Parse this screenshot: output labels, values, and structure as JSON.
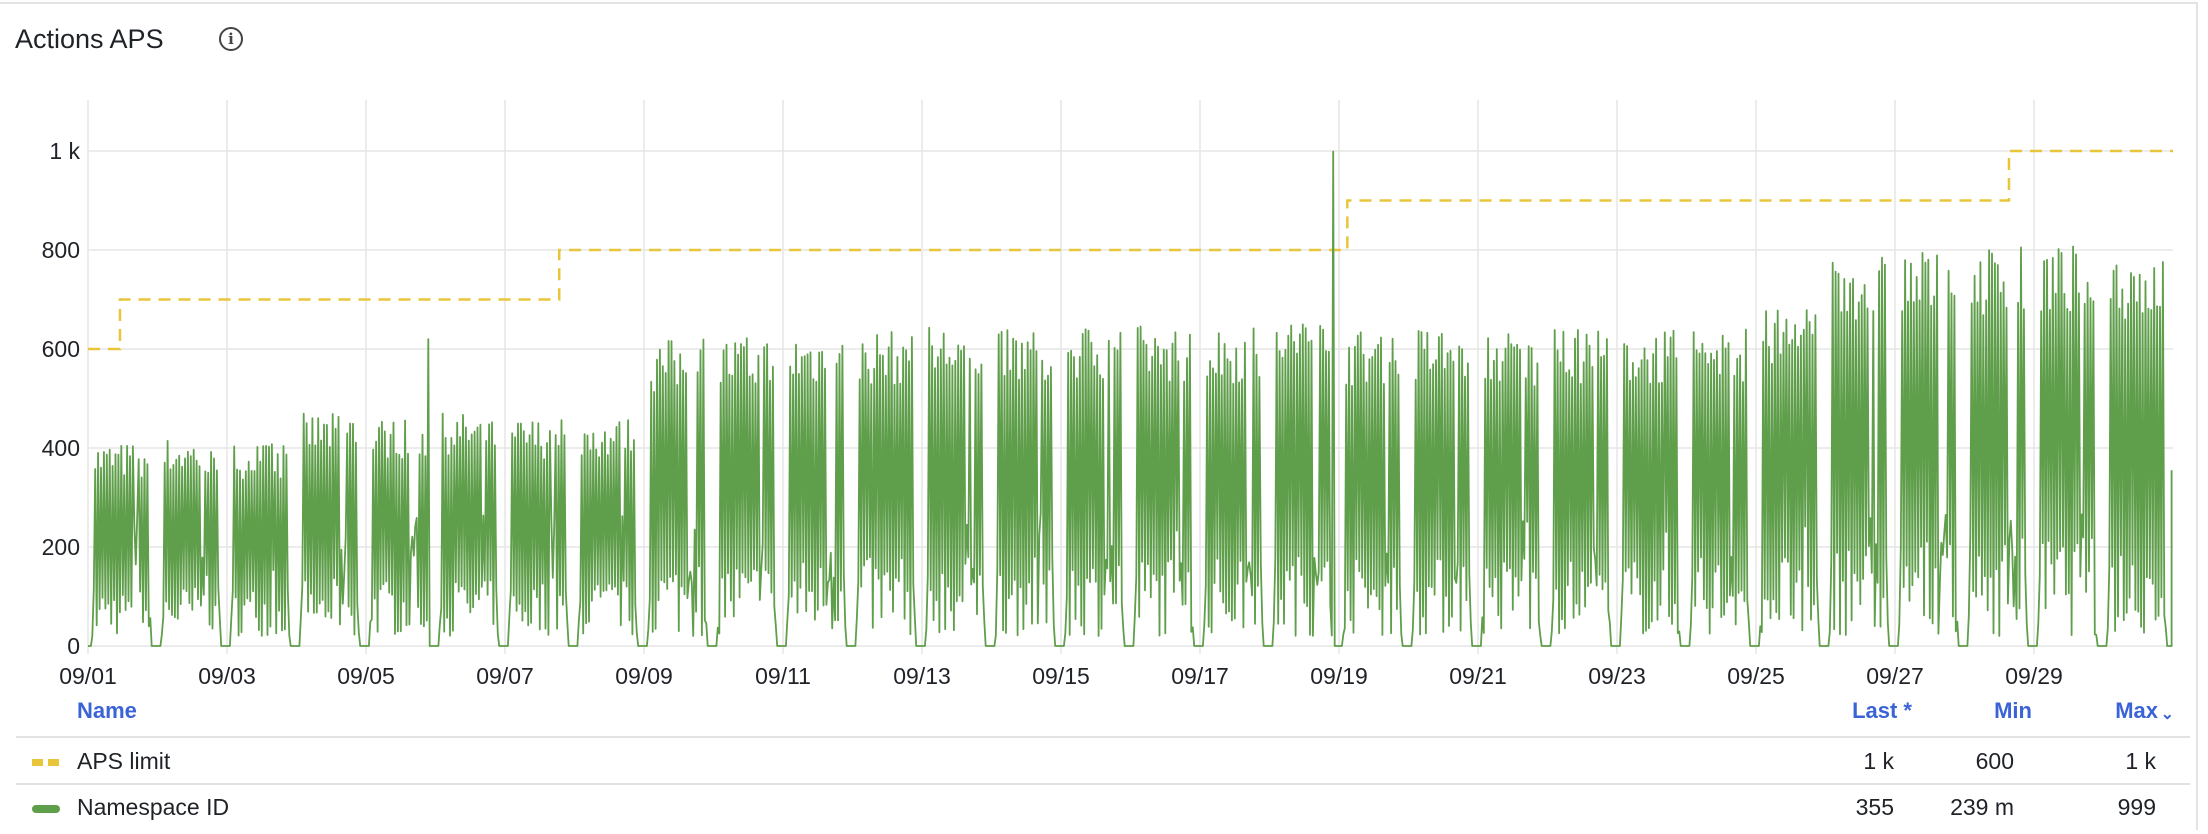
{
  "panel": {
    "title": "Actions APS",
    "info_icon": "info-circle-icon"
  },
  "legend": {
    "headers": {
      "name": "Name",
      "last": "Last *",
      "min": "Min",
      "max": "Max",
      "sort_icon": "chevron-down-icon"
    },
    "rows": [
      {
        "name": "APS limit",
        "last": "1 k",
        "min": "600",
        "max": "1 k",
        "color": "#e8c53a",
        "style": "dashed"
      },
      {
        "name": "Namespace ID",
        "last": "355",
        "min": "239 m",
        "max": "999",
        "color": "#5f9e4a",
        "style": "solid"
      }
    ]
  },
  "chart_data": {
    "type": "line",
    "title": "Actions APS",
    "x_range": [
      "09/01",
      "10/01"
    ],
    "ylim": [
      0,
      1100
    ],
    "y_ticks": [
      "0",
      "200",
      "400",
      "600",
      "800",
      "1 k"
    ],
    "y_tick_values": [
      0,
      200,
      400,
      600,
      800,
      1000
    ],
    "x_ticks": [
      "09/01",
      "09/03",
      "09/05",
      "09/07",
      "09/09",
      "09/11",
      "09/13",
      "09/15",
      "09/17",
      "09/19",
      "09/21",
      "09/23",
      "09/25",
      "09/27",
      "09/29"
    ],
    "x_tick_days": [
      0,
      2,
      4,
      6,
      8,
      10,
      12,
      14,
      16,
      18,
      20,
      22,
      24,
      26,
      28
    ],
    "grid": true,
    "legend_placement": "bottom",
    "series": [
      {
        "name": "APS limit",
        "color": "#e8c53a",
        "style": "dashed",
        "steps": [
          {
            "from_day": 0,
            "value": 600
          },
          {
            "from_day": 0.46,
            "value": 700
          },
          {
            "from_day": 6.78,
            "value": 800
          },
          {
            "from_day": 18.12,
            "value": 900
          },
          {
            "from_day": 27.64,
            "value": 1000
          }
        ]
      },
      {
        "name": "Namespace ID",
        "color": "#5f9e4a",
        "style": "solid",
        "daily_peak": [
          410,
          420,
          410,
          470,
          460,
          470,
          460,
          460,
          620,
          625,
          635,
          640,
          650,
          640,
          650,
          650,
          645,
          670,
          640,
          645,
          640,
          640,
          640,
          650,
          680,
          800,
          800,
          810,
          810,
          800
        ],
        "spikes": [
          {
            "day": 4.9,
            "value": 620
          },
          {
            "day": 17.92,
            "value": 999
          }
        ],
        "last": 355,
        "min": 0.239,
        "max": 999
      }
    ]
  }
}
